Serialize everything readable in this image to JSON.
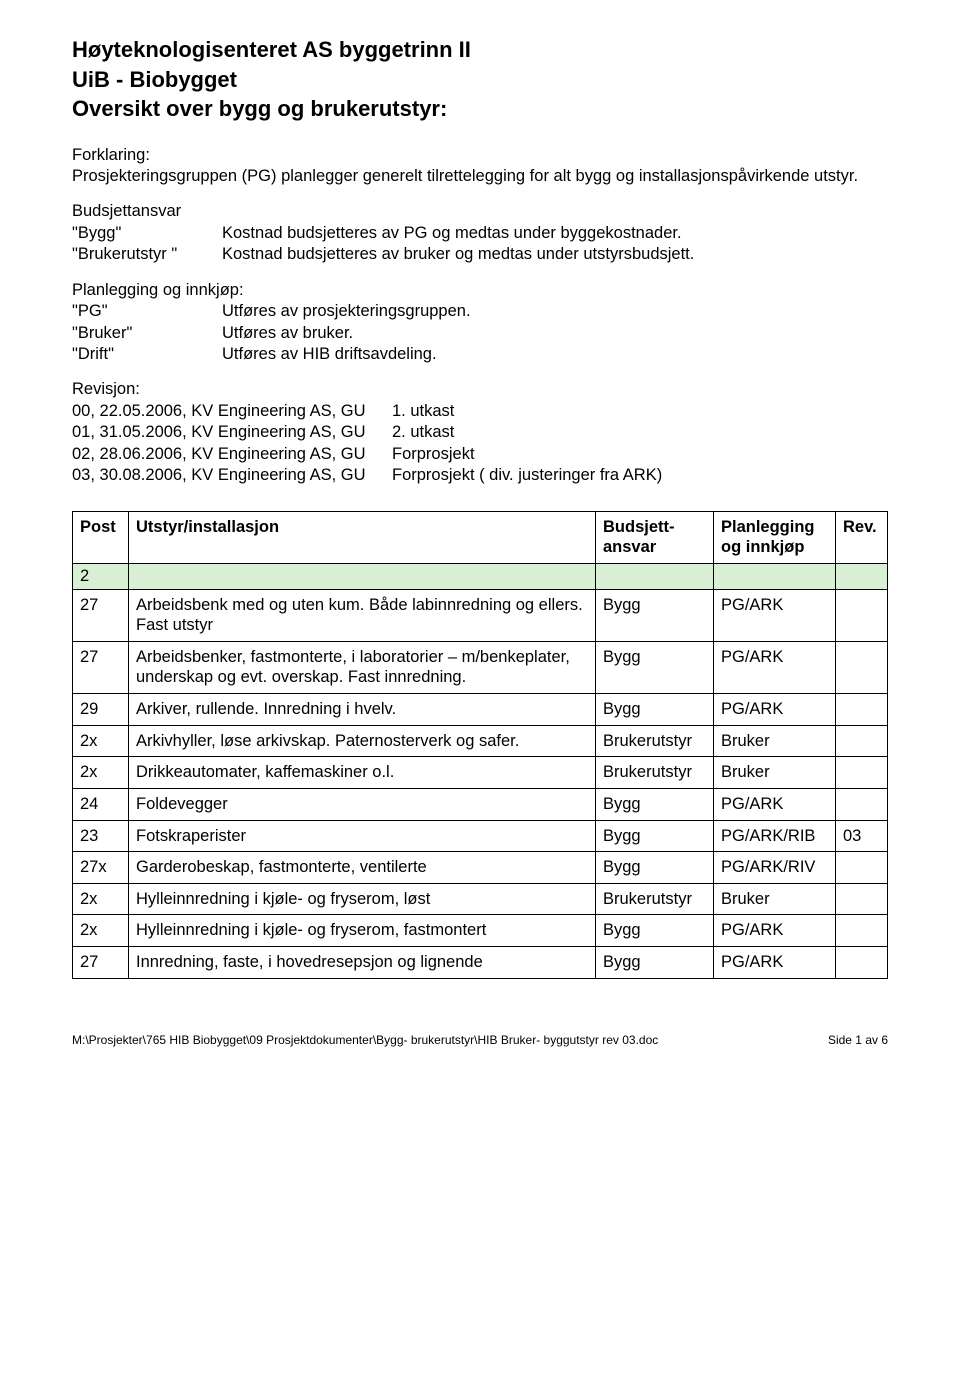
{
  "header": {
    "title1": "Høyteknologisenteret AS byggetrinn II",
    "title2": "UiB - Biobygget",
    "title3": "Oversikt over bygg og brukerutstyr:"
  },
  "forklaring": {
    "label": "Forklaring:",
    "text": "Prosjekteringsgruppen (PG) planlegger generelt tilrettelegging for alt bygg og installasjonspåvirkende utstyr."
  },
  "budsjett": {
    "label": "Budsjettansvar",
    "rows": [
      {
        "k": "\"Bygg\"",
        "v": "Kostnad budsjetteres av PG og medtas under byggekostnader."
      },
      {
        "k": "\"Brukerutstyr \"",
        "v": "Kostnad budsjetteres av bruker og medtas under utstyrsbudsjett."
      }
    ]
  },
  "planlegging": {
    "label": "Planlegging og innkjøp:",
    "rows": [
      {
        "k": "\"PG\"",
        "v": "Utføres av prosjekteringsgruppen."
      },
      {
        "k": "\"Bruker\"",
        "v": "Utføres av bruker."
      },
      {
        "k": "\"Drift\"",
        "v": "Utføres av HIB driftsavdeling."
      }
    ]
  },
  "revisjon": {
    "label": "Revisjon:",
    "rows": [
      {
        "d": "00, 22.05.2006, KV Engineering AS, GU",
        "t": "1. utkast"
      },
      {
        "d": "01, 31.05.2006, KV Engineering AS, GU",
        "t": "2. utkast"
      },
      {
        "d": "02, 28.06.2006, KV Engineering AS, GU",
        "t": "Forprosjekt"
      },
      {
        "d": "03, 30.08.2006, KV Engineering AS, GU",
        "t": "Forprosjekt ( div. justeringer fra ARK)"
      }
    ]
  },
  "table": {
    "headers": {
      "post": "Post",
      "item": "Utstyr/installasjon",
      "budget": "Budsjett-ansvar",
      "plan": "Planlegging og innkjøp",
      "rev": "Rev."
    },
    "section_label": "2",
    "section_row_bg": "#d8efd3",
    "rows": [
      {
        "post": "27",
        "item": "Arbeidsbenk med og uten kum. Både labinnredning og ellers. Fast utstyr",
        "budget": "Bygg",
        "plan": "PG/ARK",
        "rev": ""
      },
      {
        "post": "27",
        "item": "Arbeidsbenker, fastmonterte, i laboratorier – m/benkeplater, underskap og evt. overskap. Fast innredning.",
        "budget": "Bygg",
        "plan": "PG/ARK",
        "rev": ""
      },
      {
        "post": "29",
        "item": "Arkiver, rullende. Innredning i hvelv.",
        "budget": "Bygg",
        "plan": "PG/ARK",
        "rev": ""
      },
      {
        "post": "2x",
        "item": "Arkivhyller, løse arkivskap. Paternosterverk og safer.",
        "budget": "Brukerutstyr",
        "plan": "Bruker",
        "rev": ""
      },
      {
        "post": "2x",
        "item": "Drikkeautomater, kaffemaskiner o.l.",
        "budget": "Brukerutstyr",
        "plan": "Bruker",
        "rev": ""
      },
      {
        "post": "24",
        "item": "Foldevegger",
        "budget": "Bygg",
        "plan": "PG/ARK",
        "rev": ""
      },
      {
        "post": "23",
        "item": "Fotskraperister",
        "budget": "Bygg",
        "plan": "PG/ARK/RIB",
        "rev": "03"
      },
      {
        "post": "27x",
        "item": "Garderobeskap, fastmonterte, ventilerte",
        "budget": "Bygg",
        "plan": "PG/ARK/RIV",
        "rev": ""
      },
      {
        "post": "2x",
        "item": "Hylleinnredning i kjøle- og fryserom, løst",
        "budget": "Brukerutstyr",
        "plan": "Bruker",
        "rev": ""
      },
      {
        "post": "2x",
        "item": "Hylleinnredning i kjøle- og fryserom, fastmontert",
        "budget": "Bygg",
        "plan": "PG/ARK",
        "rev": ""
      },
      {
        "post": "27",
        "item": "Innredning, faste, i hovedresepsjon og lignende",
        "budget": "Bygg",
        "plan": "PG/ARK",
        "rev": ""
      }
    ]
  },
  "footer": {
    "path": "M:\\Prosjekter\\765 HIB Biobygget\\09 Prosjektdokumenter\\Bygg- brukerutstyr\\HIB Bruker- byggutstyr rev 03.doc",
    "page": "Side 1 av 6"
  }
}
